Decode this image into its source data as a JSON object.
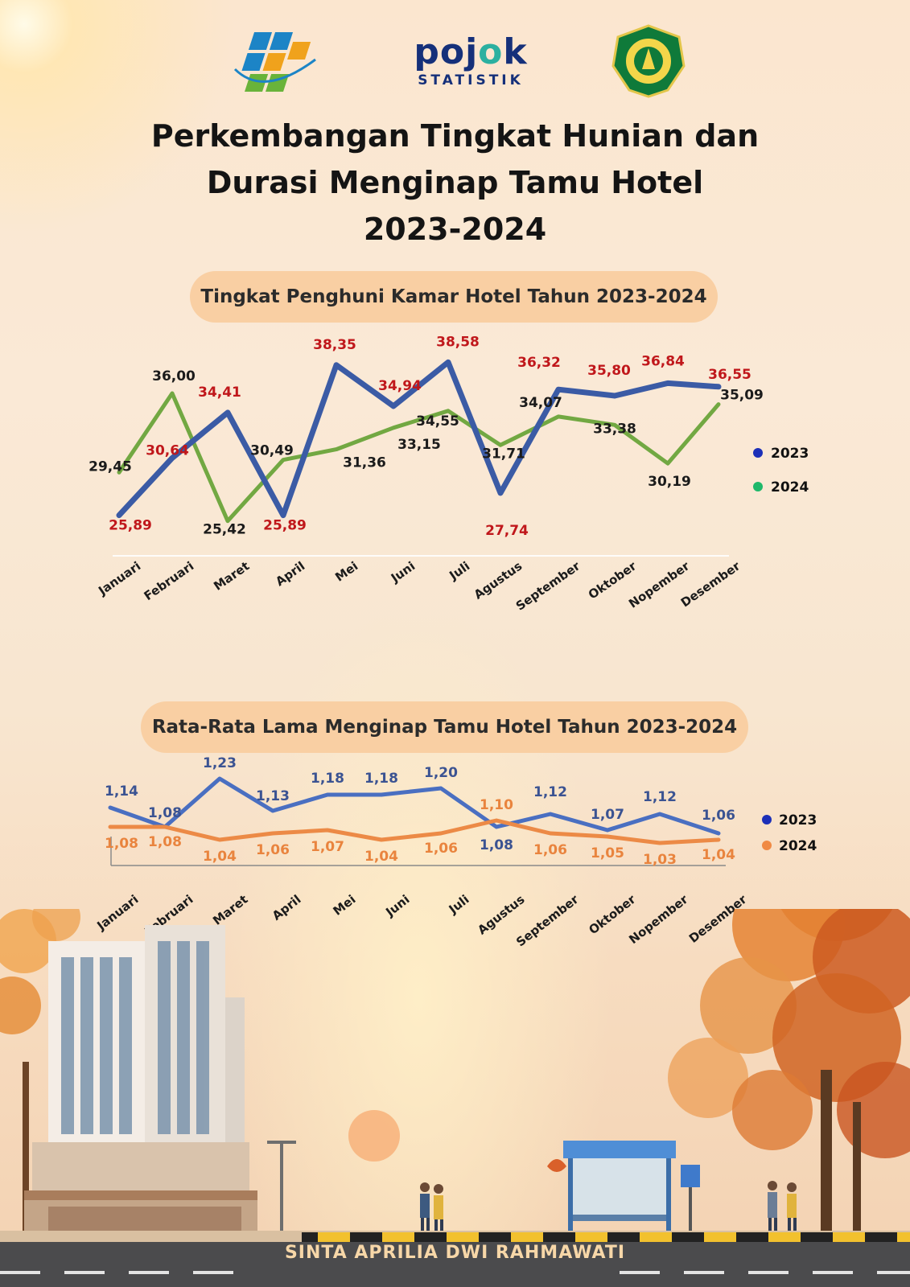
{
  "title": {
    "line1": "Perkembangan Tingkat Hunian dan",
    "line2": "Durasi Menginap Tamu Hotel",
    "line3": "2023-2024"
  },
  "logos": {
    "pojok_word_main": "poj",
    "pojok_word_accent": "o",
    "pojok_word_end": "k",
    "pojok_sub": "STATISTIK"
  },
  "colors": {
    "series2023_occupancy": "#3b5ba5",
    "series2024_occupancy": "#72a842",
    "series2023_stay": "#4a6fc1",
    "series2024_stay": "#ec8a46",
    "label_red": "#c0171b",
    "label_dark": "#1b1b1b",
    "label_stay_2024": "#e9843e",
    "label_stay_2023": "#3b5392",
    "pill": "#f9cfa3"
  },
  "chart_data": [
    {
      "type": "line",
      "title": "Tingkat Penghuni Kamar Hotel Tahun 2023-2024",
      "categories": [
        "Januari",
        "Februari",
        "Maret",
        "April",
        "Mei",
        "Juni",
        "Juli",
        "Agustus",
        "September",
        "Oktober",
        "Nopember",
        "Desember"
      ],
      "series": [
        {
          "name": "2023",
          "values": [
            25.89,
            30.64,
            34.41,
            25.89,
            38.35,
            34.94,
            38.58,
            27.74,
            36.32,
            35.8,
            36.84,
            36.55
          ],
          "labels": [
            "25,89",
            "30,64",
            "34,41",
            "25,89",
            "38,35",
            "34,94",
            "38,58",
            "27,74",
            "36,32",
            "35,80",
            "36,84",
            "36,55"
          ]
        },
        {
          "name": "2024",
          "values": [
            29.45,
            36.0,
            25.42,
            30.49,
            31.36,
            33.15,
            34.55,
            31.71,
            34.07,
            33.38,
            30.19,
            35.09
          ],
          "labels": [
            "29,45",
            "36,00",
            "25,42",
            "30,49",
            "31,36",
            "33,15",
            "34,55",
            "31,71",
            "34,07",
            "33,38",
            "30,19",
            "35,09"
          ]
        }
      ],
      "legend": "right"
    },
    {
      "type": "line",
      "title": "Rata-Rata Lama Menginap Tamu Hotel Tahun 2023-2024",
      "categories": [
        "Januari",
        "Februari",
        "Maret",
        "April",
        "Mei",
        "Juni",
        "Juli",
        "Agustus",
        "September",
        "Oktober",
        "Nopember",
        "Desember"
      ],
      "series": [
        {
          "name": "2023",
          "values": [
            1.14,
            1.08,
            1.23,
            1.13,
            1.18,
            1.18,
            1.2,
            1.08,
            1.12,
            1.07,
            1.12,
            1.06
          ],
          "labels": [
            "1,14",
            "1,08",
            "1,23",
            "1,13",
            "1,18",
            "1,18",
            "1,20",
            "1,08",
            "1,12",
            "1,07",
            "1,12",
            "1,06"
          ]
        },
        {
          "name": "2024",
          "values": [
            1.08,
            1.08,
            1.04,
            1.06,
            1.07,
            1.04,
            1.06,
            1.1,
            1.06,
            1.05,
            1.03,
            1.04
          ],
          "labels": [
            "1,08",
            "1,08",
            "1,04",
            "1,06",
            "1,07",
            "1,04",
            "1,06",
            "1,10",
            "1,06",
            "1,05",
            "1,03",
            "1,04"
          ]
        }
      ],
      "legend": "right"
    }
  ],
  "footer": {
    "author": "SINTA APRILIA DWI RAHMAWATI"
  }
}
